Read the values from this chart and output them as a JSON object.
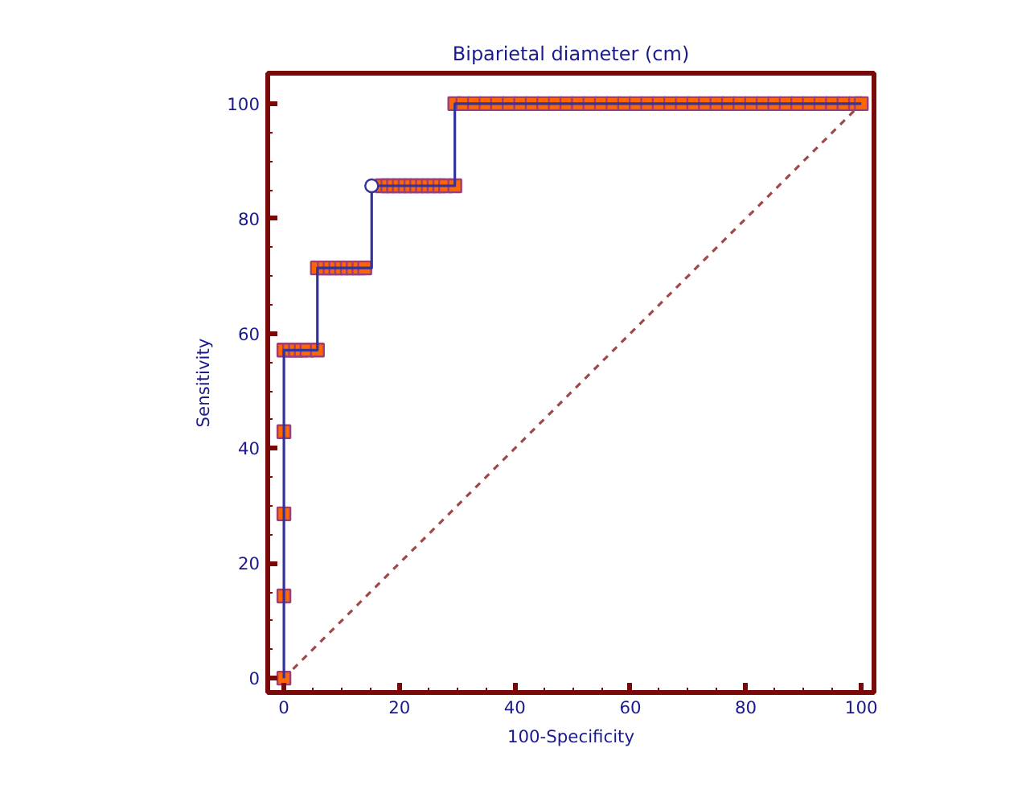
{
  "chart_data": {
    "type": "line",
    "title": "Biparietal diameter (cm)",
    "xlabel": "100-Specificity",
    "ylabel": "Sensitivity",
    "xlim": [
      -2.8,
      102.2
    ],
    "ylim": [
      -2.5,
      105.3
    ],
    "xticks": [
      0,
      {
        "value": 5,
        "label": null
      },
      {
        "value": 10,
        "label": null
      },
      {
        "value": 15,
        "label": null
      },
      20,
      {
        "value": 25,
        "label": null
      },
      {
        "value": 30,
        "label": null
      },
      {
        "value": 35,
        "label": null
      },
      40,
      {
        "value": 45,
        "label": null
      },
      {
        "value": 50,
        "label": null
      },
      {
        "value": 55,
        "label": null
      },
      60,
      {
        "value": 65,
        "label": null
      },
      {
        "value": 70,
        "label": null
      },
      {
        "value": 75,
        "label": null
      },
      80,
      {
        "value": 85,
        "label": null
      },
      {
        "value": 90,
        "label": null
      },
      {
        "value": 95,
        "label": null
      },
      100
    ],
    "yticks": [
      0,
      {
        "value": 5,
        "label": null
      },
      {
        "value": 10,
        "label": null
      },
      {
        "value": 15,
        "label": null
      },
      20,
      {
        "value": 25,
        "label": null
      },
      {
        "value": 30,
        "label": null
      },
      {
        "value": 35,
        "label": null
      },
      40,
      {
        "value": 45,
        "label": null
      },
      {
        "value": 50,
        "label": null
      },
      {
        "value": 55,
        "label": null
      },
      60,
      {
        "value": 65,
        "label": null
      },
      {
        "value": 70,
        "label": null
      },
      {
        "value": 75,
        "label": null
      },
      80,
      {
        "value": 85,
        "label": null
      },
      {
        "value": 90,
        "label": null
      },
      {
        "value": 95,
        "label": null
      },
      100
    ],
    "grid": false,
    "series": [
      {
        "color": "#a04848",
        "line_style": "dashed",
        "x": [
          0,
          100
        ],
        "values": [
          0,
          100
        ]
      },
      {
        "type": "scatter",
        "color": "#ff6600",
        "marker": "square",
        "x": [
          0,
          0,
          0,
          0,
          0,
          1,
          2,
          3,
          4,
          5.8,
          5.8,
          7,
          8,
          9,
          10,
          11,
          12,
          13,
          14,
          17,
          18,
          19,
          20,
          21,
          22,
          23,
          24,
          25,
          26,
          27,
          28,
          29.6,
          29.6,
          31,
          33,
          35,
          37,
          39,
          41,
          43,
          45,
          47,
          49,
          51,
          53,
          55,
          57,
          59,
          61,
          63,
          65,
          67,
          69,
          71,
          73,
          75,
          77,
          79,
          81,
          83,
          85,
          87,
          89,
          91,
          93,
          95,
          97,
          99,
          100
        ],
        "values": [
          0,
          14.3,
          28.6,
          42.9,
          57.1,
          57.1,
          57.1,
          57.1,
          57.1,
          57.1,
          71.4,
          71.4,
          71.4,
          71.4,
          71.4,
          71.4,
          71.4,
          71.4,
          71.4,
          85.7,
          85.7,
          85.7,
          85.7,
          85.7,
          85.7,
          85.7,
          85.7,
          85.7,
          85.7,
          85.7,
          85.7,
          85.7,
          100,
          100,
          100,
          100,
          100,
          100,
          100,
          100,
          100,
          100,
          100,
          100,
          100,
          100,
          100,
          100,
          100,
          100,
          100,
          100,
          100,
          100,
          100,
          100,
          100,
          100,
          100,
          100,
          100,
          100,
          100,
          100,
          100,
          100,
          100,
          100,
          100
        ]
      },
      {
        "color": "#33339a",
        "line_style": "solid",
        "x": [
          0,
          0,
          5.8,
          5.8,
          15.2,
          15.2,
          29.6,
          29.6,
          100
        ],
        "values": [
          0,
          57.1,
          57.1,
          71.4,
          71.4,
          85.7,
          85.7,
          100,
          100
        ]
      },
      {
        "type": "scatter",
        "color": "#ffffff",
        "marker": "circle",
        "x": [
          15.2
        ],
        "values": [
          85.7
        ]
      }
    ]
  }
}
